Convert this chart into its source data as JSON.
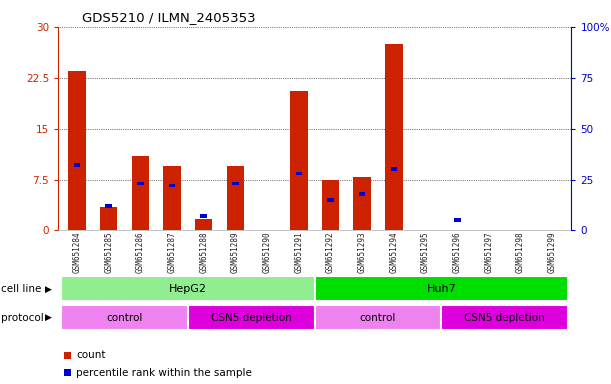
{
  "title": "GDS5210 / ILMN_2405353",
  "samples": [
    "GSM651284",
    "GSM651285",
    "GSM651286",
    "GSM651287",
    "GSM651288",
    "GSM651289",
    "GSM651290",
    "GSM651291",
    "GSM651292",
    "GSM651293",
    "GSM651294",
    "GSM651295",
    "GSM651296",
    "GSM651297",
    "GSM651298",
    "GSM651299"
  ],
  "red_values": [
    23.5,
    3.5,
    11.0,
    9.5,
    1.7,
    9.5,
    0.0,
    20.5,
    7.5,
    7.8,
    27.5,
    0.0,
    0.0,
    0.0,
    0.0,
    0.0
  ],
  "blue_pct": [
    32,
    12,
    23,
    22,
    7,
    23,
    0,
    28,
    15,
    18,
    30,
    0,
    5,
    0,
    0,
    0
  ],
  "cell_line_groups": [
    {
      "label": "HepG2",
      "start": 0,
      "end": 7,
      "color": "#90ee90"
    },
    {
      "label": "Huh7",
      "start": 8,
      "end": 15,
      "color": "#00dd00"
    }
  ],
  "protocol_groups": [
    {
      "label": "control",
      "start": 0,
      "end": 3,
      "color": "#ee82ee"
    },
    {
      "label": "CSN5 depletion",
      "start": 4,
      "end": 7,
      "color": "#dd00dd"
    },
    {
      "label": "control",
      "start": 8,
      "end": 11,
      "color": "#ee82ee"
    },
    {
      "label": "CSN5 depletion",
      "start": 12,
      "end": 15,
      "color": "#dd00dd"
    }
  ],
  "ylim_left": [
    0,
    30
  ],
  "ylim_right": [
    0,
    100
  ],
  "yticks_left": [
    0,
    7.5,
    15,
    22.5,
    30
  ],
  "ytick_labels_left": [
    "0",
    "7.5",
    "15",
    "22.5",
    "30"
  ],
  "yticks_right": [
    0,
    25,
    50,
    75,
    100
  ],
  "ytick_labels_right": [
    "0",
    "25",
    "50",
    "75",
    "100%"
  ],
  "red_color": "#cc2200",
  "blue_color": "#0000cc",
  "grid_color": "#000000",
  "legend_count": "count",
  "legend_pct": "percentile rank within the sample",
  "cell_line_label": "cell line",
  "protocol_label": "protocol"
}
